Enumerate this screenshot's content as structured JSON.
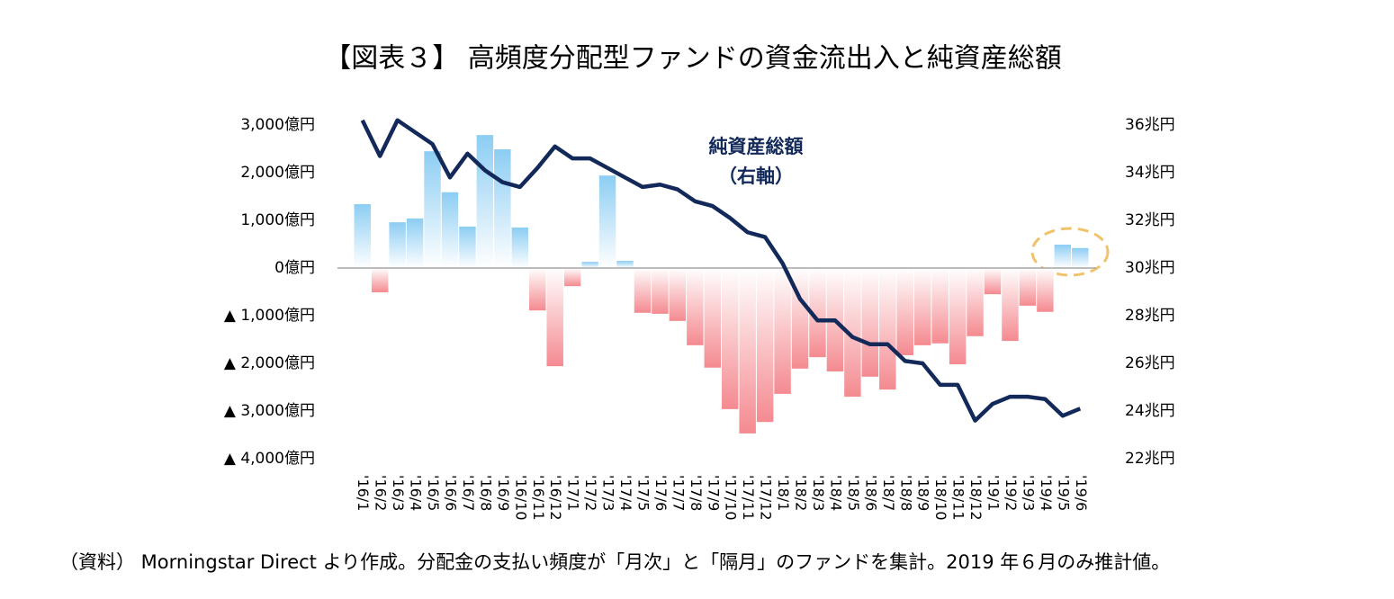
{
  "chart_data": {
    "type": "bar-line",
    "title": "【図表３】 高頻度分配型ファンドの資金流出入と純資産総額",
    "annotations": [
      "純資産総額",
      "（右軸）"
    ],
    "note": "（資料） Morningstar Direct より作成。分配金の支払い頻度が「月次」と「隔月」のファンドを集計。2019 年６月のみ推計値。",
    "categories": [
      "'16/1",
      "'16/2",
      "'16/3",
      "'16/4",
      "'16/5",
      "'16/6",
      "'16/7",
      "'16/8",
      "'16/9",
      "'16/10",
      "'16/11",
      "'16/12",
      "'17/1",
      "'17/2",
      "'17/3",
      "'17/4",
      "'17/5",
      "'17/6",
      "'17/7",
      "'17/8",
      "'17/9",
      "'17/10",
      "'17/11",
      "'17/12",
      "'18/1",
      "'18/2",
      "'18/3",
      "'18/4",
      "'18/5",
      "'18/6",
      "'18/7",
      "'18/8",
      "'18/9",
      "'18/10",
      "'18/11",
      "'18/12",
      "'19/1",
      "'19/2",
      "'19/3",
      "'19/4",
      "'19/5",
      "'19/6"
    ],
    "series": [
      {
        "type": "bar",
        "color": "#8ccdf3",
        "negative_color": "#f48a90",
        "values": [
          1340,
          -510,
          960,
          1040,
          2450,
          1590,
          870,
          2790,
          2490,
          850,
          -890,
          -2060,
          -380,
          130,
          1940,
          150,
          -940,
          -960,
          -1110,
          -1620,
          -2090,
          -2960,
          -3470,
          -3230,
          -2640,
          -2110,
          -1870,
          -2170,
          -2700,
          -2280,
          -2550,
          -1830,
          -1620,
          -1580,
          -2020,
          -1430,
          -550,
          -1530,
          -790,
          -920,
          490,
          420
        ]
      },
      {
        "type": "line",
        "axis": "y2",
        "color": "#12295a",
        "values": [
          36.2,
          34.7,
          36.2,
          35.7,
          35.2,
          33.8,
          34.8,
          34.1,
          33.6,
          33.4,
          34.2,
          35.1,
          34.6,
          34.6,
          34.2,
          33.8,
          33.4,
          33.5,
          33.3,
          32.8,
          32.6,
          32.1,
          31.5,
          31.3,
          30.2,
          28.7,
          27.8,
          27.8,
          27.1,
          26.8,
          26.8,
          26.1,
          26.0,
          25.1,
          25.1,
          23.6,
          24.3,
          24.6,
          24.6,
          24.5,
          23.8,
          24.1
        ]
      }
    ],
    "ylim": [
      -4000,
      3000
    ],
    "yticks": [
      {
        "value": 3000,
        "label": "3,000億円"
      },
      {
        "value": 2000,
        "label": "2,000億円"
      },
      {
        "value": 1000,
        "label": "1,000億円"
      },
      {
        "value": 0,
        "label": "0億円"
      },
      {
        "value": -1000,
        "label": "▲ 1,000億円"
      },
      {
        "value": -2000,
        "label": "▲ 2,000億円"
      },
      {
        "value": -3000,
        "label": "▲ 3,000億円"
      },
      {
        "value": -4000,
        "label": "▲ 4,000億円"
      }
    ],
    "y2lim": [
      22,
      36
    ],
    "y2ticks": [
      {
        "value": 36,
        "label": "36兆円"
      },
      {
        "value": 34,
        "label": "34兆円"
      },
      {
        "value": 32,
        "label": "32兆円"
      },
      {
        "value": 30,
        "label": "30兆円"
      },
      {
        "value": 28,
        "label": "28兆円"
      },
      {
        "value": 26,
        "label": "26兆円"
      },
      {
        "value": 24,
        "label": "24兆円"
      },
      {
        "value": 22,
        "label": "22兆円"
      }
    ]
  }
}
